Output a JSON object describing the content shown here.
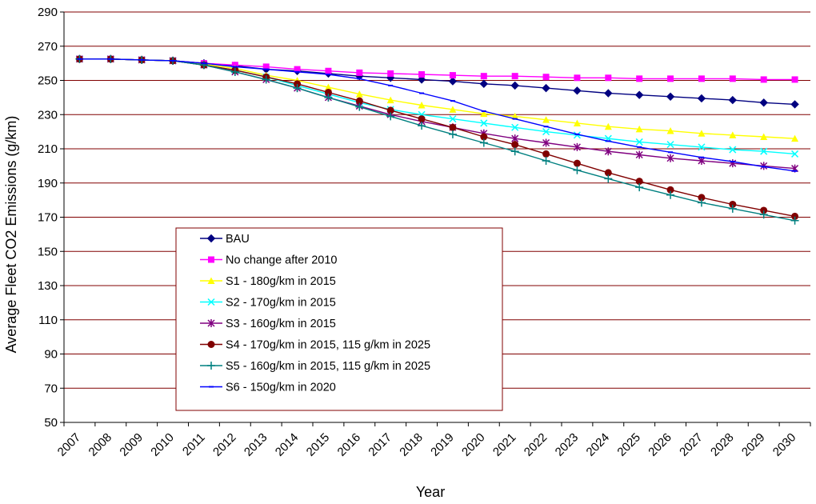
{
  "chart_data": {
    "type": "line",
    "xlabel": "Year",
    "ylabel": "Average Fleet CO2 Emissions (g/km)",
    "x": [
      2007,
      2008,
      2009,
      2010,
      2011,
      2012,
      2013,
      2014,
      2015,
      2016,
      2017,
      2018,
      2019,
      2020,
      2021,
      2022,
      2023,
      2024,
      2025,
      2026,
      2027,
      2028,
      2029,
      2030
    ],
    "ylim": [
      50,
      290
    ],
    "yticks": [
      50,
      70,
      90,
      110,
      130,
      150,
      170,
      190,
      210,
      230,
      250,
      270,
      290
    ],
    "grid": "horizontal",
    "legend_position": "inside-bottom-left",
    "series": [
      {
        "name": "BAU",
        "color": "#000080",
        "marker": "diamond",
        "values": [
          262.5,
          262.5,
          262,
          261.5,
          260,
          258.5,
          256.5,
          255.5,
          254,
          252.5,
          251.5,
          250.5,
          249.5,
          248,
          247,
          245.5,
          244,
          242.5,
          241.5,
          240.5,
          239.5,
          238.5,
          237,
          236
        ]
      },
      {
        "name": "No change after 2010",
        "color": "#FF00FF",
        "marker": "square",
        "values": [
          262.5,
          262.5,
          262,
          261.5,
          260,
          259,
          258,
          256.5,
          255.5,
          254.5,
          254,
          253.5,
          253,
          252.5,
          252.5,
          252,
          251.5,
          251.5,
          251,
          251,
          251,
          251,
          250.5,
          250.5
        ]
      },
      {
        "name": "S1 - 180g/km in 2015",
        "color": "#FFFF00",
        "marker": "triangle",
        "values": [
          262.5,
          262.5,
          262,
          261.5,
          259.5,
          257,
          253,
          250,
          246,
          242,
          238.5,
          235.5,
          233,
          230.5,
          229,
          227,
          225,
          223,
          221.5,
          220.5,
          219,
          218,
          217,
          216
        ]
      },
      {
        "name": "S2 - 170g/km in 2015",
        "color": "#00FFFF",
        "marker": "x",
        "values": [
          262.5,
          262.5,
          262,
          261.5,
          259,
          256,
          252,
          247,
          242,
          237,
          233,
          230,
          227.5,
          225,
          222.5,
          220,
          218,
          216,
          214,
          212.5,
          211,
          209.5,
          208.5,
          207
        ]
      },
      {
        "name": "S3 - 160g/km in 2015",
        "color": "#800080",
        "marker": "star",
        "values": [
          262.5,
          262.5,
          262,
          261.5,
          259,
          255,
          250.5,
          245.5,
          240,
          235,
          230,
          226,
          222.5,
          219,
          216,
          213.5,
          211,
          208.5,
          206.5,
          204.5,
          203,
          201.5,
          200,
          198.5
        ]
      },
      {
        "name": "S4 - 170g/km in 2015, 115 g/km in 2025",
        "color": "#800000",
        "marker": "circle",
        "values": [
          262.5,
          262.5,
          262,
          261.5,
          259,
          256,
          252,
          248,
          243,
          238,
          232.5,
          227.5,
          222.5,
          217,
          212.5,
          207,
          201.5,
          196,
          191,
          186,
          181.5,
          177.5,
          174,
          170.5
        ]
      },
      {
        "name": "S5 - 160g/km in 2015, 115 g/km in 2025",
        "color": "#008080",
        "marker": "plus",
        "values": [
          262.5,
          262.5,
          262,
          261.5,
          259,
          255,
          250.5,
          245.5,
          240,
          234.5,
          229,
          223.5,
          218.5,
          213.5,
          208.5,
          203,
          197.5,
          192.5,
          187.5,
          183,
          178.5,
          175,
          171.5,
          168
        ]
      },
      {
        "name": "S6 - 150g/km in 2020",
        "color": "#0000FF",
        "marker": "dash",
        "values": [
          262.5,
          262.5,
          262,
          261.5,
          260,
          258,
          256.5,
          255,
          253.5,
          251,
          247,
          242.5,
          238,
          232,
          227.5,
          223,
          218.5,
          214.5,
          211,
          208,
          205,
          202.5,
          199.5,
          197
        ]
      }
    ]
  }
}
